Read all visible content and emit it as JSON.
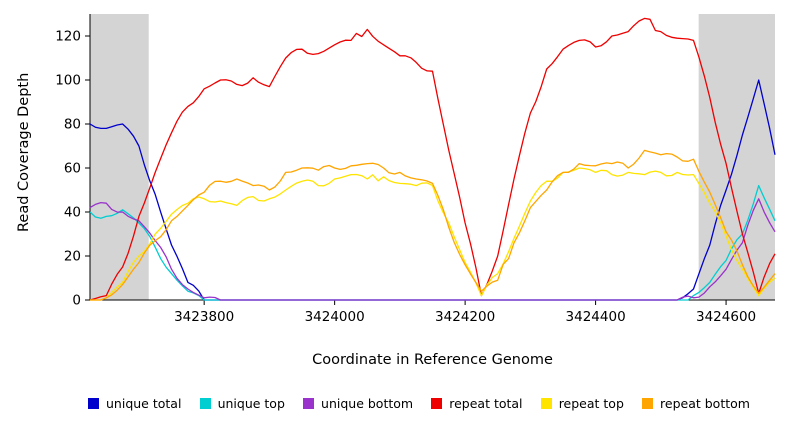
{
  "chart_data": {
    "type": "line",
    "title": "",
    "xlabel": "Coordinate in Reference Genome",
    "ylabel": "Read Coverage Depth",
    "xlim": [
      3423625,
      3424675
    ],
    "ylim": [
      0,
      130
    ],
    "x_ticks": [
      3423800,
      3424000,
      3424200,
      3424400,
      3424600
    ],
    "y_ticks": [
      0,
      20,
      40,
      60,
      80,
      100,
      120
    ],
    "grid": false,
    "legend_position": "bottom",
    "shade_color": "#d4d4d4",
    "shaded_regions": [
      {
        "x1": 3423625,
        "x2": 3423715
      },
      {
        "x1": 3424558,
        "x2": 3424675
      }
    ],
    "x": [
      3423625,
      3423650,
      3423675,
      3423700,
      3423725,
      3423750,
      3423775,
      3423800,
      3423825,
      3423850,
      3423875,
      3423900,
      3423925,
      3423950,
      3423975,
      3424000,
      3424025,
      3424050,
      3424075,
      3424100,
      3424125,
      3424150,
      3424175,
      3424200,
      3424225,
      3424250,
      3424275,
      3424300,
      3424325,
      3424350,
      3424375,
      3424400,
      3424425,
      3424450,
      3424475,
      3424500,
      3424525,
      3424550,
      3424575,
      3424600,
      3424625,
      3424650,
      3424675
    ],
    "series": [
      {
        "name": "unique total",
        "color": "#0000cc",
        "values": [
          80,
          78,
          80,
          70,
          48,
          25,
          8,
          0,
          0,
          0,
          0,
          0,
          0,
          0,
          0,
          0,
          0,
          0,
          0,
          0,
          0,
          0,
          0,
          0,
          0,
          0,
          0,
          0,
          0,
          0,
          0,
          0,
          0,
          0,
          0,
          0,
          0,
          5,
          25,
          50,
          75,
          100,
          66
        ]
      },
      {
        "name": "unique top",
        "color": "#00ced1",
        "values": [
          40,
          38,
          41,
          35,
          24,
          12,
          4,
          0,
          0,
          0,
          0,
          0,
          0,
          0,
          0,
          0,
          0,
          0,
          0,
          0,
          0,
          0,
          0,
          0,
          0,
          0,
          0,
          0,
          0,
          0,
          0,
          0,
          0,
          0,
          0,
          0,
          0,
          2,
          8,
          18,
          30,
          52,
          36
        ]
      },
      {
        "name": "unique bottom",
        "color": "#9933cc",
        "values": [
          42,
          44,
          40,
          36,
          27,
          14,
          5,
          1,
          0,
          0,
          0,
          0,
          0,
          0,
          0,
          0,
          0,
          0,
          0,
          0,
          0,
          0,
          0,
          0,
          0,
          0,
          0,
          0,
          0,
          0,
          0,
          0,
          0,
          0,
          0,
          0,
          0,
          1,
          6,
          14,
          26,
          46,
          31
        ]
      },
      {
        "name": "repeat total",
        "color": "#ee0000",
        "values": [
          0,
          2,
          15,
          38,
          58,
          76,
          88,
          96,
          100,
          98,
          101,
          97,
          110,
          114,
          112,
          116,
          118,
          123,
          116,
          111,
          108,
          104,
          68,
          35,
          2,
          20,
          55,
          85,
          105,
          114,
          118,
          115,
          120,
          122,
          128,
          122,
          119,
          118,
          92,
          62,
          30,
          3,
          21
        ]
      },
      {
        "name": "repeat top",
        "color": "#ffe400",
        "values": [
          0,
          1,
          8,
          20,
          30,
          39,
          44,
          46,
          45,
          43,
          47,
          46,
          50,
          54,
          52,
          55,
          57,
          55,
          56,
          53,
          52,
          52,
          35,
          17,
          2,
          12,
          28,
          45,
          54,
          58,
          60,
          58,
          57,
          58,
          57,
          58,
          58,
          57,
          44,
          29,
          14,
          2,
          10
        ]
      },
      {
        "name": "repeat bottom",
        "color": "#ffa500",
        "values": [
          0,
          1,
          7,
          17,
          27,
          36,
          43,
          49,
          54,
          55,
          52,
          50,
          58,
          60,
          59,
          60,
          61,
          62,
          60,
          58,
          55,
          53,
          33,
          16,
          4,
          9,
          26,
          42,
          50,
          58,
          62,
          61,
          62,
          60,
          68,
          66,
          65,
          64,
          49,
          31,
          16,
          3,
          12
        ]
      }
    ]
  }
}
